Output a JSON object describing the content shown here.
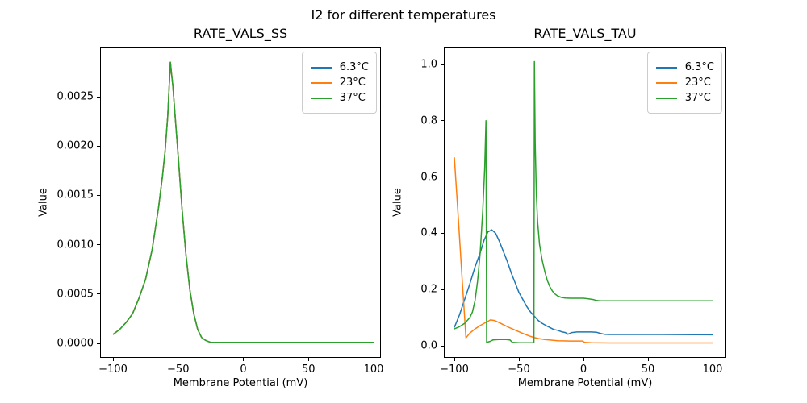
{
  "figure": {
    "suptitle": "I2 for different temperatures",
    "background": "#ffffff",
    "text_color": "#000000",
    "spine_color": "#000000"
  },
  "legend": {
    "position": "upper right",
    "edge_color": "#cccccc",
    "entries": [
      {
        "label": "6.3°C",
        "color": "#1f77b4"
      },
      {
        "label": "23°C",
        "color": "#ff7f0e"
      },
      {
        "label": "37°C",
        "color": "#2ca02c"
      }
    ]
  },
  "chart_data": [
    {
      "type": "line",
      "title": "RATE_VALS_SS",
      "xlabel": "Membrane Potential (mV)",
      "ylabel": "Value",
      "grid": false,
      "legend_position": "upper right",
      "xlim": [
        -110,
        110
      ],
      "ylim": [
        -0.00015,
        0.003
      ],
      "xticks": {
        "values": [
          -100,
          -50,
          0,
          50,
          100
        ],
        "labels": [
          "−100",
          "−50",
          "0",
          "50",
          "100"
        ]
      },
      "yticks": {
        "values": [
          0,
          0.0005,
          0.001,
          0.0015,
          0.002,
          0.0025
        ],
        "labels": [
          "0.0000",
          "0.0005",
          "0.0010",
          "0.0015",
          "0.0020",
          "0.0025"
        ]
      },
      "note": "All three temperature series overlap exactly; green (37°C, drawn last) is the visible curve. Peak ≈0.00285 at −56 mV.",
      "shared_points": [
        [
          -100,
          9e-05
        ],
        [
          -95,
          0.00014
        ],
        [
          -90,
          0.00021
        ],
        [
          -85,
          0.0003
        ],
        [
          -80,
          0.00046
        ],
        [
          -75,
          0.00065
        ],
        [
          -70,
          0.00095
        ],
        [
          -65,
          0.00138
        ],
        [
          -62,
          0.0017
        ],
        [
          -60,
          0.00195
        ],
        [
          -58,
          0.0023
        ],
        [
          -56,
          0.00285
        ],
        [
          -54,
          0.0026
        ],
        [
          -52,
          0.00225
        ],
        [
          -50,
          0.0019
        ],
        [
          -47,
          0.00136
        ],
        [
          -44,
          0.0009
        ],
        [
          -41,
          0.00054
        ],
        [
          -38,
          0.0003
        ],
        [
          -35,
          0.00014
        ],
        [
          -32,
          6e-05
        ],
        [
          -29,
          3e-05
        ],
        [
          -25,
          1e-05
        ],
        [
          -20,
          1e-05
        ],
        [
          0,
          1e-05
        ],
        [
          50,
          1e-05
        ],
        [
          100,
          1e-05
        ]
      ],
      "series": [
        {
          "name": "6.3°C",
          "color": "#1f77b4"
        },
        {
          "name": "23°C",
          "color": "#ff7f0e"
        },
        {
          "name": "37°C",
          "color": "#2ca02c"
        }
      ]
    },
    {
      "type": "line",
      "title": "RATE_VALS_TAU",
      "xlabel": "Membrane Potential (mV)",
      "ylabel": "Value",
      "grid": false,
      "legend_position": "upper right",
      "xlim": [
        -110,
        110
      ],
      "ylim": [
        -0.045,
        1.06
      ],
      "xticks": {
        "values": [
          -100,
          -50,
          0,
          50,
          100
        ],
        "labels": [
          "−100",
          "−50",
          "0",
          "50",
          "100"
        ]
      },
      "yticks": {
        "values": [
          0,
          0.2,
          0.4,
          0.6,
          0.8,
          1.0
        ],
        "labels": [
          "0.0",
          "0.2",
          "0.4",
          "0.6",
          "0.8",
          "1.0"
        ]
      },
      "note": "Blue: smooth peak ≈0.41 at −71 mV, plateau 0.04. Orange: starts 0.67, min 0.03 near −92, bump 0.09 at −72, plateau 0.01. Green: spike 0.8 at −75.5, spike 1.01 at −38, plateau 0.16.",
      "series": [
        {
          "name": "6.3°C",
          "color": "#1f77b4",
          "points": [
            [
              -100,
              0.065
            ],
            [
              -96,
              0.11
            ],
            [
              -92,
              0.165
            ],
            [
              -88,
              0.22
            ],
            [
              -84,
              0.28
            ],
            [
              -80,
              0.33
            ],
            [
              -77,
              0.375
            ],
            [
              -74,
              0.405
            ],
            [
              -71,
              0.412
            ],
            [
              -68,
              0.4
            ],
            [
              -65,
              0.37
            ],
            [
              -62,
              0.335
            ],
            [
              -59,
              0.3
            ],
            [
              -56,
              0.26
            ],
            [
              -53,
              0.225
            ],
            [
              -50,
              0.19
            ],
            [
              -47,
              0.165
            ],
            [
              -44,
              0.14
            ],
            [
              -41,
              0.12
            ],
            [
              -38,
              0.105
            ],
            [
              -35,
              0.09
            ],
            [
              -32,
              0.08
            ],
            [
              -29,
              0.072
            ],
            [
              -26,
              0.065
            ],
            [
              -23,
              0.058
            ],
            [
              -20,
              0.055
            ],
            [
              -17,
              0.05
            ],
            [
              -14,
              0.047
            ],
            [
              -12,
              0.041
            ],
            [
              -9,
              0.047
            ],
            [
              -5,
              0.049
            ],
            [
              0,
              0.049
            ],
            [
              6,
              0.049
            ],
            [
              10,
              0.048
            ],
            [
              13,
              0.044
            ],
            [
              16,
              0.041
            ],
            [
              20,
              0.04
            ],
            [
              60,
              0.04
            ],
            [
              100,
              0.039
            ]
          ]
        },
        {
          "name": "23°C",
          "color": "#ff7f0e",
          "points": [
            [
              -100,
              0.67
            ],
            [
              -97,
              0.46
            ],
            [
              -94,
              0.24
            ],
            [
              -91,
              0.028
            ],
            [
              -88,
              0.045
            ],
            [
              -84,
              0.06
            ],
            [
              -80,
              0.072
            ],
            [
              -76,
              0.082
            ],
            [
              -72,
              0.092
            ],
            [
              -69,
              0.09
            ],
            [
              -66,
              0.084
            ],
            [
              -62,
              0.075
            ],
            [
              -58,
              0.066
            ],
            [
              -54,
              0.058
            ],
            [
              -50,
              0.05
            ],
            [
              -46,
              0.042
            ],
            [
              -42,
              0.035
            ],
            [
              -38,
              0.029
            ],
            [
              -34,
              0.025
            ],
            [
              -30,
              0.022
            ],
            [
              -25,
              0.02
            ],
            [
              -20,
              0.018
            ],
            [
              -10,
              0.017
            ],
            [
              -1,
              0.017
            ],
            [
              1,
              0.012
            ],
            [
              6,
              0.011
            ],
            [
              20,
              0.01
            ],
            [
              100,
              0.01
            ]
          ]
        },
        {
          "name": "37°C",
          "color": "#2ca02c",
          "points": [
            [
              -100,
              0.06
            ],
            [
              -96,
              0.068
            ],
            [
              -92,
              0.08
            ],
            [
              -88,
              0.1
            ],
            [
              -86,
              0.12
            ],
            [
              -84,
              0.16
            ],
            [
              -82,
              0.23
            ],
            [
              -80,
              0.33
            ],
            [
              -78,
              0.48
            ],
            [
              -76.5,
              0.63
            ],
            [
              -75.5,
              0.8
            ],
            [
              -75.2,
              0.35
            ],
            [
              -75,
              0.012
            ],
            [
              -72,
              0.016
            ],
            [
              -70,
              0.021
            ],
            [
              -66,
              0.022
            ],
            [
              -60,
              0.022
            ],
            [
              -57,
              0.021
            ],
            [
              -55,
              0.012
            ],
            [
              -50,
              0.011
            ],
            [
              -44,
              0.011
            ],
            [
              -40,
              0.011
            ],
            [
              -38.4,
              0.011
            ],
            [
              -38,
              1.01
            ],
            [
              -37.4,
              0.72
            ],
            [
              -36.5,
              0.54
            ],
            [
              -35.5,
              0.44
            ],
            [
              -34,
              0.36
            ],
            [
              -32,
              0.305
            ],
            [
              -30,
              0.265
            ],
            [
              -28,
              0.232
            ],
            [
              -26,
              0.21
            ],
            [
              -24,
              0.194
            ],
            [
              -22,
              0.184
            ],
            [
              -20,
              0.177
            ],
            [
              -17,
              0.172
            ],
            [
              -14,
              0.17
            ],
            [
              -10,
              0.169
            ],
            [
              -5,
              0.169
            ],
            [
              0,
              0.169
            ],
            [
              4,
              0.167
            ],
            [
              8,
              0.164
            ],
            [
              10,
              0.161
            ],
            [
              13,
              0.16
            ],
            [
              50,
              0.16
            ],
            [
              100,
              0.16
            ]
          ]
        }
      ]
    }
  ]
}
